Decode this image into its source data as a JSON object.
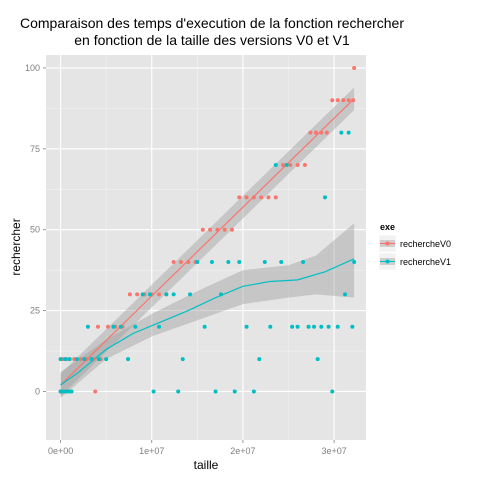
{
  "chart_data": {
    "type": "scatter",
    "title_line1": "Comparaison des temps d'execution de la fonction rechercher",
    "title_line2": "en fonction de la taille des versions V0 et V1",
    "xlabel": "taille",
    "ylabel": "rechercher",
    "xlim": [
      -1600000,
      33500000
    ],
    "ylim": [
      -15,
      104
    ],
    "x_ticks": [
      0,
      10000000,
      20000000,
      30000000
    ],
    "x_tick_labels": [
      "0e+00",
      "1e+07",
      "2e+07",
      "3e+07"
    ],
    "y_ticks": [
      0,
      25,
      50,
      75,
      100
    ],
    "y_tick_labels": [
      "0",
      "25",
      "50",
      "75",
      "100"
    ],
    "grid": true,
    "legend_title": "exe",
    "legend_position": "right",
    "series": [
      {
        "name": "rechercheV0",
        "color": "#F8766D",
        "points": [
          [
            0,
            0
          ],
          [
            300000,
            0
          ],
          [
            600000,
            0
          ],
          [
            900000,
            0
          ],
          [
            200000,
            10
          ],
          [
            700000,
            10
          ],
          [
            1500000,
            10
          ],
          [
            2200000,
            10
          ],
          [
            2900000,
            10
          ],
          [
            3600000,
            10
          ],
          [
            3800000,
            0
          ],
          [
            4100000,
            20
          ],
          [
            4400000,
            10
          ],
          [
            5200000,
            20
          ],
          [
            6000000,
            20
          ],
          [
            6800000,
            20
          ],
          [
            7600000,
            30
          ],
          [
            8400000,
            30
          ],
          [
            9200000,
            30
          ],
          [
            10000000,
            30
          ],
          [
            10800000,
            30
          ],
          [
            11600000,
            30
          ],
          [
            12400000,
            40
          ],
          [
            13200000,
            40
          ],
          [
            14000000,
            40
          ],
          [
            14800000,
            40
          ],
          [
            15600000,
            50
          ],
          [
            16400000,
            50
          ],
          [
            17200000,
            50
          ],
          [
            18000000,
            50
          ],
          [
            18800000,
            50
          ],
          [
            19600000,
            60
          ],
          [
            20400000,
            60
          ],
          [
            21200000,
            60
          ],
          [
            22000000,
            60
          ],
          [
            22800000,
            60
          ],
          [
            23600000,
            60
          ],
          [
            24400000,
            70
          ],
          [
            25200000,
            70
          ],
          [
            26000000,
            70
          ],
          [
            26800000,
            70
          ],
          [
            27400000,
            80
          ],
          [
            28000000,
            80
          ],
          [
            28600000,
            80
          ],
          [
            29200000,
            80
          ],
          [
            29800000,
            90
          ],
          [
            30400000,
            90
          ],
          [
            31000000,
            90
          ],
          [
            31600000,
            90
          ],
          [
            32100000,
            90
          ],
          [
            32200000,
            100
          ]
        ],
        "fit": [
          [
            0,
            2
          ],
          [
            32200000,
            90.5
          ]
        ]
      },
      {
        "name": "rechercheV1",
        "color": "#00BFC4",
        "points": [
          [
            0,
            0
          ],
          [
            300000,
            0
          ],
          [
            600000,
            0
          ],
          [
            900000,
            0
          ],
          [
            1200000,
            0
          ],
          [
            0,
            10
          ],
          [
            500000,
            10
          ],
          [
            1000000,
            10
          ],
          [
            1800000,
            10
          ],
          [
            2600000,
            10
          ],
          [
            3000000,
            20
          ],
          [
            3400000,
            10
          ],
          [
            4200000,
            10
          ],
          [
            5000000,
            10
          ],
          [
            5800000,
            20
          ],
          [
            6600000,
            20
          ],
          [
            7400000,
            10
          ],
          [
            8200000,
            20
          ],
          [
            9000000,
            30
          ],
          [
            9800000,
            30
          ],
          [
            10200000,
            0
          ],
          [
            10800000,
            20
          ],
          [
            11600000,
            30
          ],
          [
            12400000,
            30
          ],
          [
            12900000,
            0
          ],
          [
            13400000,
            10
          ],
          [
            14200000,
            30
          ],
          [
            15000000,
            40
          ],
          [
            15800000,
            20
          ],
          [
            16600000,
            40
          ],
          [
            17000000,
            0
          ],
          [
            17600000,
            30
          ],
          [
            18400000,
            40
          ],
          [
            19100000,
            0
          ],
          [
            19600000,
            40
          ],
          [
            20400000,
            20
          ],
          [
            21200000,
            0
          ],
          [
            21800000,
            10
          ],
          [
            22400000,
            40
          ],
          [
            23000000,
            20
          ],
          [
            23600000,
            70
          ],
          [
            24200000,
            40
          ],
          [
            24800000,
            70
          ],
          [
            25400000,
            20
          ],
          [
            26000000,
            20
          ],
          [
            26600000,
            40
          ],
          [
            27200000,
            20
          ],
          [
            27800000,
            20
          ],
          [
            28200000,
            10
          ],
          [
            28600000,
            20
          ],
          [
            29000000,
            60
          ],
          [
            29400000,
            20
          ],
          [
            29800000,
            0
          ],
          [
            30400000,
            20
          ],
          [
            30800000,
            80
          ],
          [
            31200000,
            30
          ],
          [
            31600000,
            80
          ],
          [
            32000000,
            20
          ],
          [
            32200000,
            40
          ]
        ],
        "fit": [
          [
            0,
            2
          ],
          [
            2000000,
            6
          ],
          [
            5000000,
            13
          ],
          [
            8000000,
            18
          ],
          [
            11000000,
            21.5
          ],
          [
            14000000,
            25
          ],
          [
            17000000,
            29
          ],
          [
            20000000,
            32.5
          ],
          [
            23000000,
            34
          ],
          [
            26000000,
            34.5
          ],
          [
            29000000,
            37
          ],
          [
            32200000,
            41
          ]
        ],
        "band_upper": [
          [
            0,
            6
          ],
          [
            5000000,
            16
          ],
          [
            10000000,
            24
          ],
          [
            15000000,
            31
          ],
          [
            20000000,
            37.5
          ],
          [
            25000000,
            39
          ],
          [
            28000000,
            42
          ],
          [
            32200000,
            52
          ]
        ],
        "band_lower": [
          [
            0,
            -2
          ],
          [
            5000000,
            10
          ],
          [
            10000000,
            17
          ],
          [
            15000000,
            22
          ],
          [
            20000000,
            27
          ],
          [
            25000000,
            29
          ],
          [
            28000000,
            30
          ],
          [
            32200000,
            29
          ]
        ]
      }
    ]
  }
}
